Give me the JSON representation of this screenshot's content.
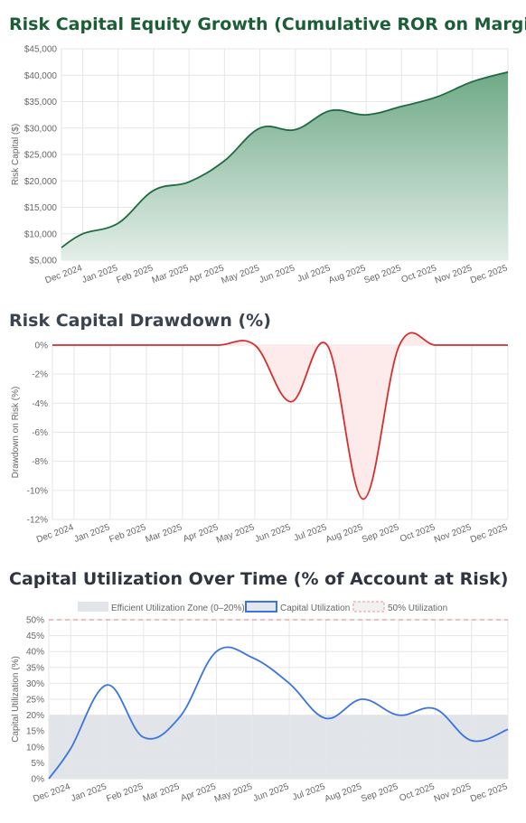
{
  "chart_data": [
    {
      "type": "area",
      "title": "Risk Capital Equity Growth (Cumulative ROR on Margin)",
      "xlabel": "",
      "ylabel": "Risk Capital ($)",
      "ylim": [
        5000,
        45000
      ],
      "y_ticks": [
        "$5,000",
        "$10,000",
        "$15,000",
        "$20,000",
        "$25,000",
        "$30,000",
        "$35,000",
        "$40,000",
        "$45,000"
      ],
      "x_labels": [
        "Dec 2024",
        "Jan 2025",
        "Feb 2025",
        "Mar 2025",
        "Apr 2025",
        "May 2025",
        "Jun 2025",
        "Jul 2025",
        "Aug 2025",
        "Sep 2025",
        "Oct 2025",
        "Nov 2025",
        "Dec 2025"
      ],
      "x": [
        -0.6,
        0,
        1,
        2,
        3,
        4,
        5,
        6,
        7,
        8,
        9,
        10,
        11,
        12
      ],
      "values": [
        7400,
        10000,
        12000,
        18200,
        19800,
        23800,
        30000,
        29700,
        33300,
        32500,
        34100,
        35900,
        38800,
        40600
      ],
      "grid": true,
      "color": "#1e6b40",
      "fill_top": "#6fa987",
      "fill_bottom": "#e3eee8"
    },
    {
      "type": "area",
      "title": "Risk Capital Drawdown (%)",
      "xlabel": "",
      "ylabel": "Drawdown on Risk (%)",
      "ylim": [
        -12,
        0
      ],
      "y_ticks": [
        "-12%",
        "-10%",
        "-8%",
        "-6%",
        "-4%",
        "-2%",
        "0%"
      ],
      "x_labels": [
        "Dec 2024",
        "Jan 2025",
        "Feb 2025",
        "Mar 2025",
        "Apr 2025",
        "May 2025",
        "Jun 2025",
        "Jul 2025",
        "Aug 2025",
        "Sep 2025",
        "Oct 2025",
        "Nov 2025",
        "Dec 2025"
      ],
      "x": [
        -0.6,
        0,
        1,
        2,
        3,
        4,
        5,
        6,
        7,
        8,
        9,
        10,
        11,
        12
      ],
      "values": [
        0,
        0,
        0,
        0,
        0,
        0,
        0,
        -3.9,
        0,
        -10.6,
        0,
        0,
        0,
        0
      ],
      "grid": true,
      "color": "#d32f2f",
      "fill": "#fdeaea"
    },
    {
      "type": "line",
      "title": "Capital Utilization Over Time (% of Account at Risk)",
      "xlabel": "",
      "ylabel": "Capital Utilization (%)",
      "ylim": [
        0,
        50
      ],
      "y_ticks": [
        "0%",
        "5%",
        "10%",
        "15%",
        "20%",
        "25%",
        "30%",
        "35%",
        "40%",
        "45%",
        "50%"
      ],
      "x_labels": [
        "Dec 2024",
        "Jan 2025",
        "Feb 2025",
        "Mar 2025",
        "Apr 2025",
        "May 2025",
        "Jun 2025",
        "Jul 2025",
        "Aug 2025",
        "Sep 2025",
        "Oct 2025",
        "Nov 2025",
        "Dec 2025"
      ],
      "x": [
        -0.6,
        0,
        1,
        2,
        3,
        4,
        5,
        6,
        7,
        8,
        9,
        10,
        11,
        12
      ],
      "series": [
        {
          "name": "Capital Utilization",
          "values": [
            0,
            9.5,
            29.5,
            13,
            19.5,
            40,
            38,
            30,
            19,
            25,
            20,
            22,
            12,
            15.5
          ],
          "color": "#3b73e0"
        }
      ],
      "band": {
        "name": "Efficient Utilization Zone (0–20%)",
        "from": 0,
        "to": 20,
        "color": "#e1e4e9"
      },
      "reference_line": {
        "name": "50% Utilization",
        "value": 50,
        "color": "#e79a9a"
      },
      "legend": "top",
      "grid": true
    }
  ]
}
